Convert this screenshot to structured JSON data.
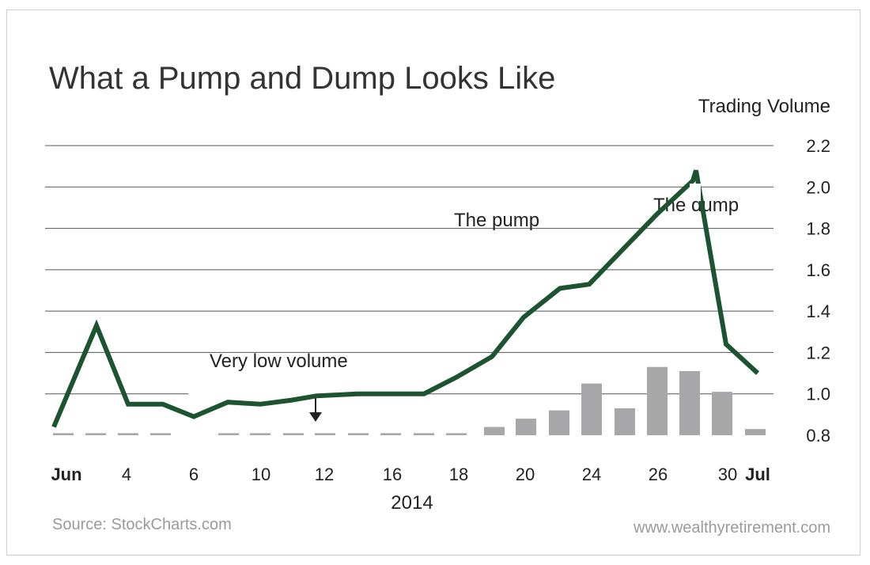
{
  "chart_data": {
    "type": "line",
    "title": "What a Pump and Dump Looks Like",
    "ylabel": "Trading Volume",
    "ylim": [
      0.8,
      2.2
    ],
    "yticks": [
      "2.2",
      "2.0",
      "1.8",
      "1.6",
      "1.4",
      "1.2",
      "1.0",
      "0.8"
    ],
    "xlabel": "2014",
    "x_tick_labels": [
      {
        "label": "Jun",
        "bold": true
      },
      {
        "label": "4",
        "bold": false
      },
      {
        "label": "6",
        "bold": false
      },
      {
        "label": "10",
        "bold": false
      },
      {
        "label": "12",
        "bold": false
      },
      {
        "label": "16",
        "bold": false
      },
      {
        "label": "18",
        "bold": false
      },
      {
        "label": "20",
        "bold": false
      },
      {
        "label": "24",
        "bold": false
      },
      {
        "label": "26",
        "bold": false
      },
      {
        "label": "30",
        "bold": false
      },
      {
        "label": "Jul",
        "bold": true
      }
    ],
    "series": [
      {
        "type": "line",
        "values": [
          0.84,
          1.33,
          0.95,
          0.95,
          0.89,
          0.96,
          0.95,
          0.97,
          0.99,
          1.0,
          1.0,
          1.0,
          1.08,
          1.18,
          1.37,
          1.51,
          1.53,
          1.7,
          1.87,
          2.03,
          2.08,
          1.24,
          1.1
        ]
      },
      {
        "type": "bar",
        "values": [
          0.81,
          0.81,
          0.81,
          0.81,
          null,
          0.81,
          0.81,
          0.81,
          0.81,
          0.81,
          0.81,
          0.81,
          0.81,
          0.84,
          0.88,
          0.92,
          1.05,
          0.93,
          1.13,
          1.11,
          1.01,
          0.83
        ]
      }
    ],
    "annotations": [
      "Very low volume",
      "The pump",
      "The dump"
    ],
    "grid": true,
    "colors": {
      "line": "#1d5430",
      "bar": "#a7a7aa",
      "grid": "#555555",
      "text": "#222222",
      "footer": "#9a9a9a"
    }
  },
  "footer": {
    "source": "Source: StockCharts.com",
    "site": "www.wealthyretirement.com"
  }
}
